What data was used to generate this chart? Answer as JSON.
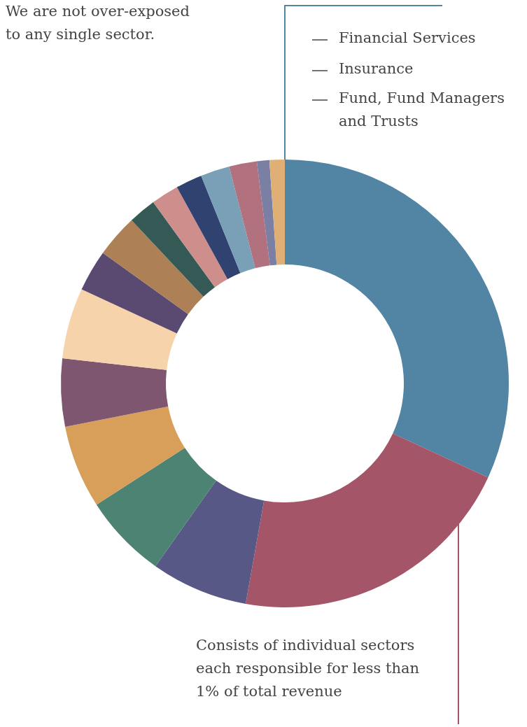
{
  "chart_data": {
    "type": "donut",
    "title": "We are not over-exposed to any single sector.",
    "categories": [
      null,
      null,
      null,
      null,
      null,
      null,
      null,
      null,
      null,
      null,
      null,
      null,
      null,
      null,
      null,
      null
    ],
    "values": [
      31.9,
      20.9,
      7.0,
      6.1,
      6.0,
      4.9,
      5.1,
      3.0,
      3.1,
      2.0,
      2.0,
      1.9,
      2.1,
      2.0,
      0.9,
      1.1
    ],
    "colors": [
      "#5285a3",
      "#a55568",
      "#575886",
      "#4c8373",
      "#d89f5a",
      "#7f566f",
      "#f6d3aa",
      "#5a4a72",
      "#ad8055",
      "#355a56",
      "#cd8e8c",
      "#2f4270",
      "#79a0b6",
      "#b2717f",
      "#7b7fa3",
      "#e0af75"
    ],
    "annotations": [
      "Financial Services",
      "Insurance",
      "Fund, Fund Managers and Trusts",
      "Consists of individual sectors each responsible for less than 1% of total revenue"
    ]
  }
}
